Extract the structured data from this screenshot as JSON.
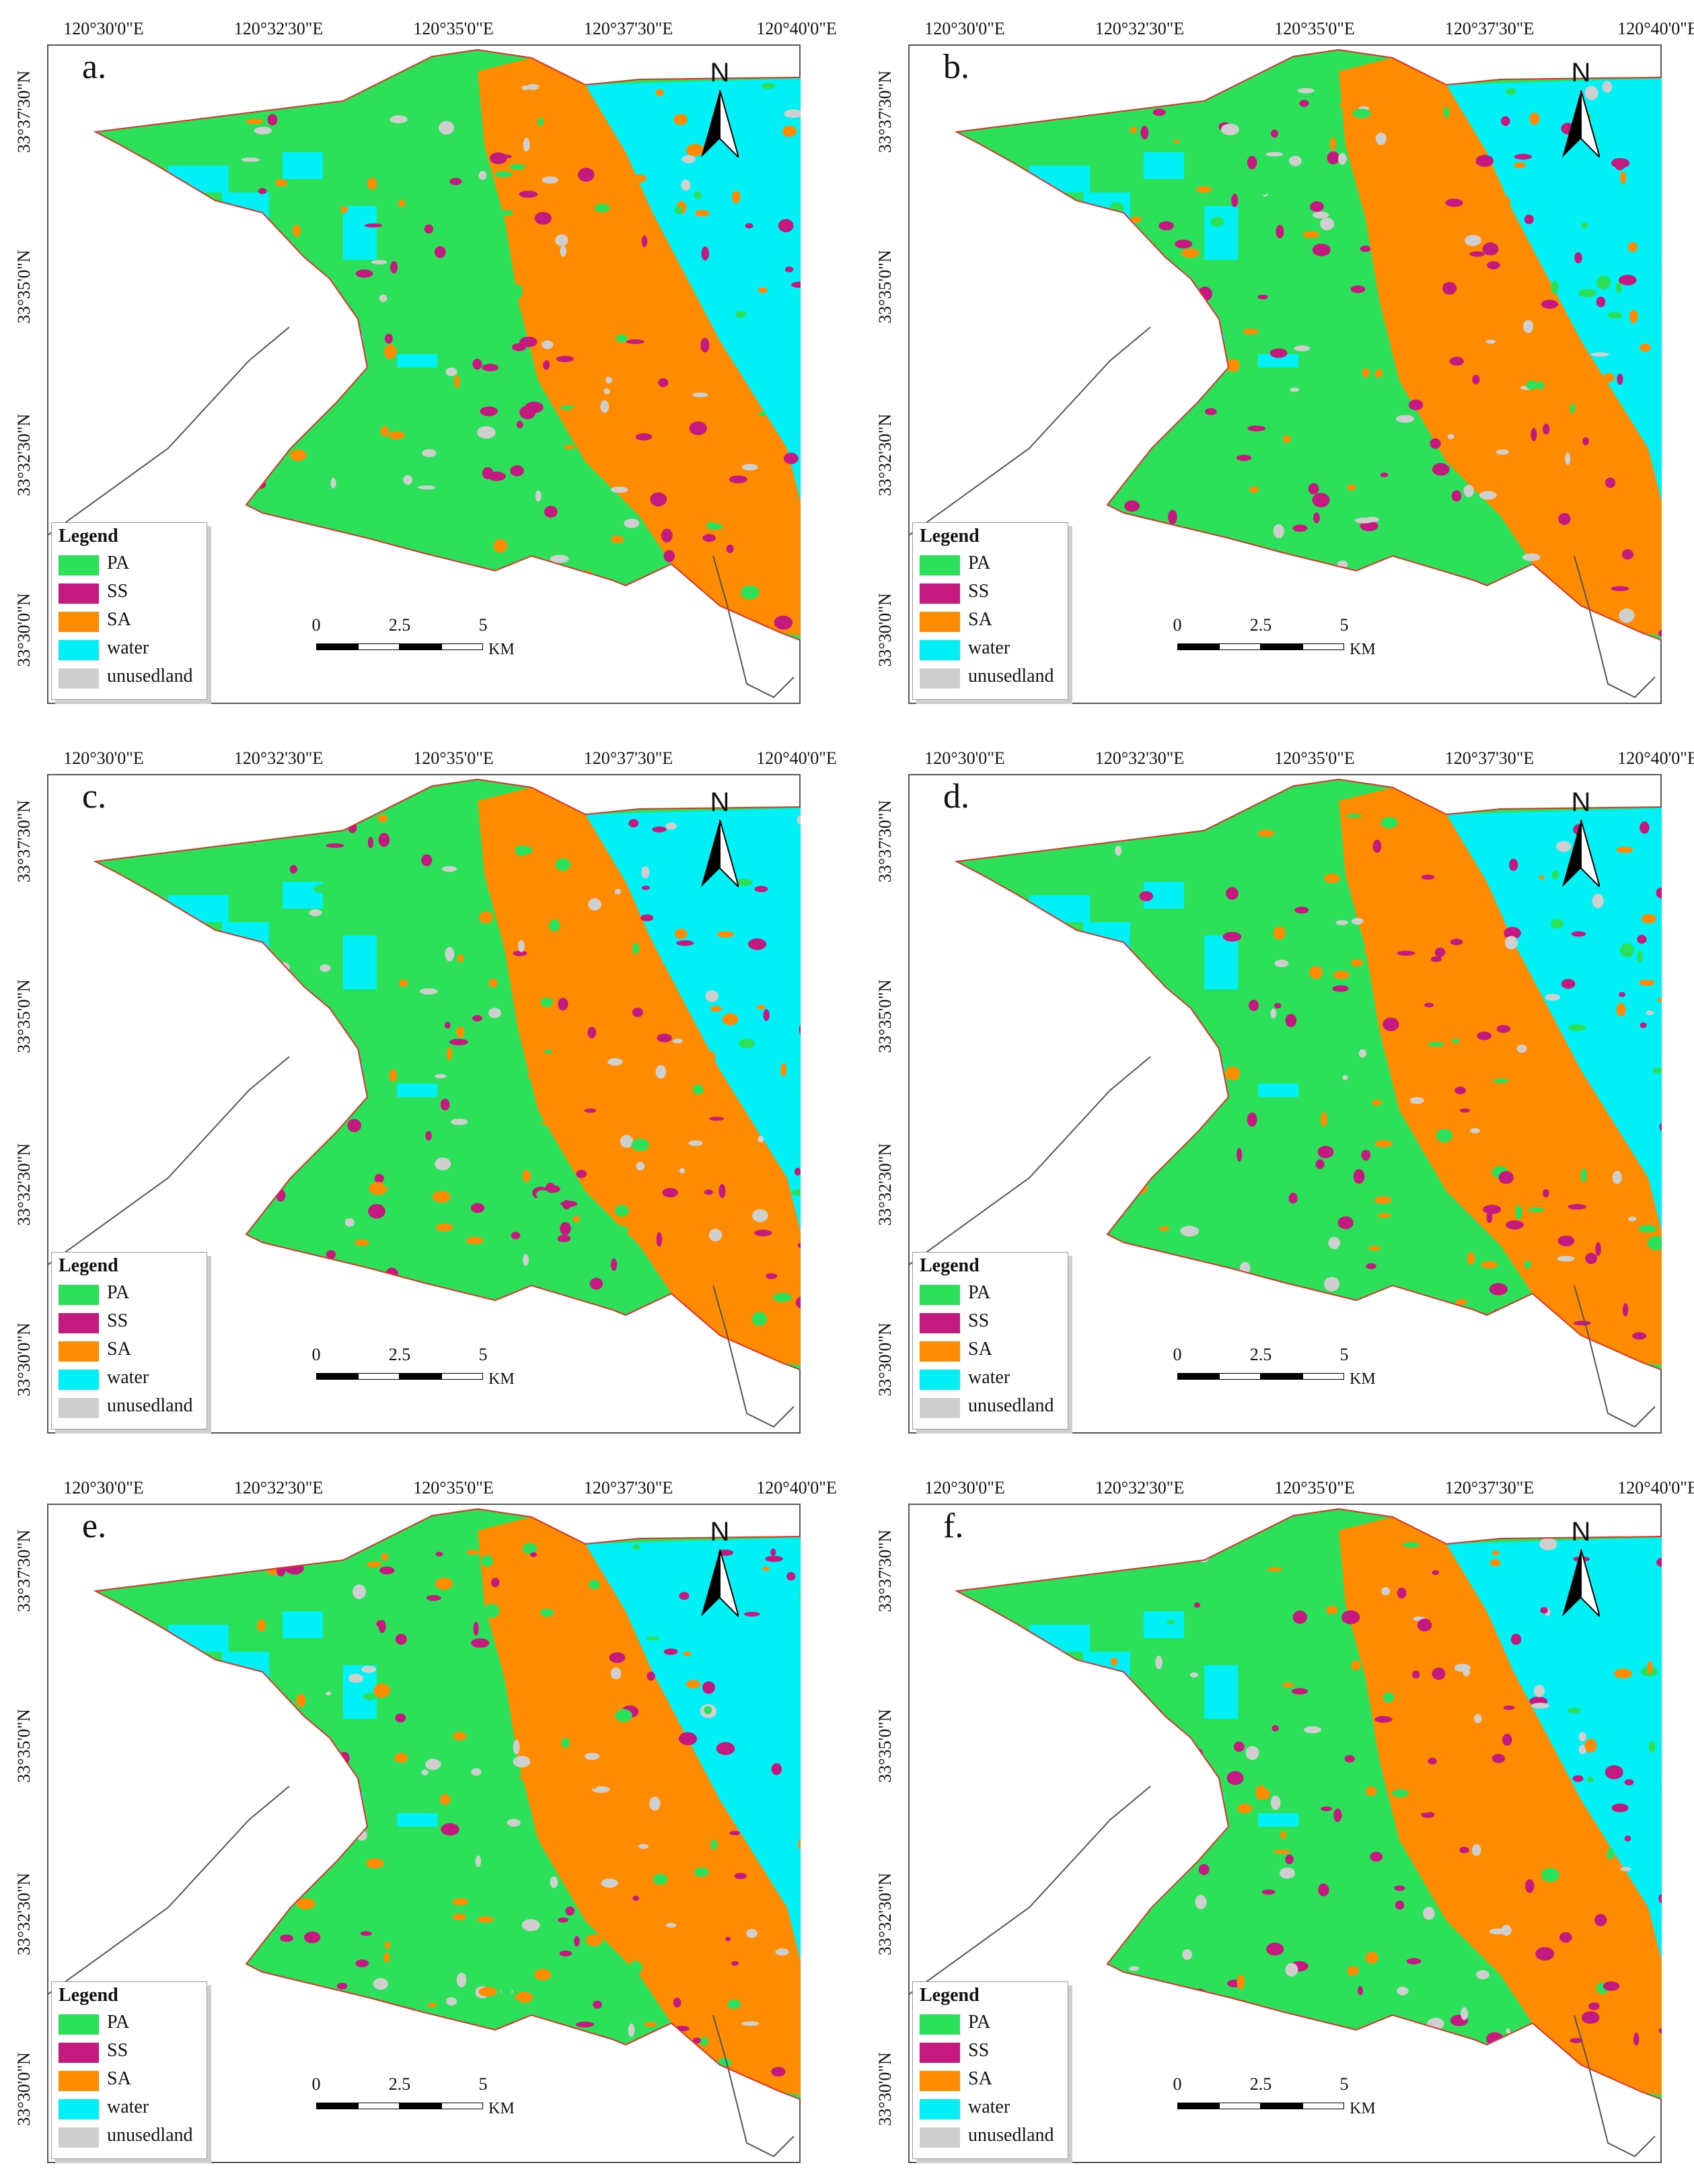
{
  "panels": [
    {
      "label": "a."
    },
    {
      "label": "b."
    },
    {
      "label": "c."
    },
    {
      "label": "d."
    },
    {
      "label": "e."
    },
    {
      "label": "f."
    }
  ],
  "axes": {
    "longitudes": [
      "120°30'0\"E",
      "120°32'30\"E",
      "120°35'0\"E",
      "120°37'30\"E",
      "120°40'0\"E"
    ],
    "latitudes": [
      "33°37'30\"N",
      "33°35'0\"N",
      "33°32'30\"N",
      "33°30'0\"N"
    ]
  },
  "north_arrow": {
    "label": "N",
    "icon": "north-arrow-icon"
  },
  "legend": {
    "title": "Legend",
    "items": [
      {
        "label": "PA",
        "color": "#2de05a"
      },
      {
        "label": "SS",
        "color": "#c4197e"
      },
      {
        "label": "SA",
        "color": "#ff8c00"
      },
      {
        "label": "water",
        "color": "#00f0f5"
      },
      {
        "label": "unusedland",
        "color": "#cfcfcf"
      }
    ]
  },
  "scale": {
    "ticks": [
      "0",
      "2.5",
      "5"
    ],
    "unit": "KM"
  },
  "colors": {
    "boundary": "#d9322a",
    "coast_line": "#555555"
  }
}
